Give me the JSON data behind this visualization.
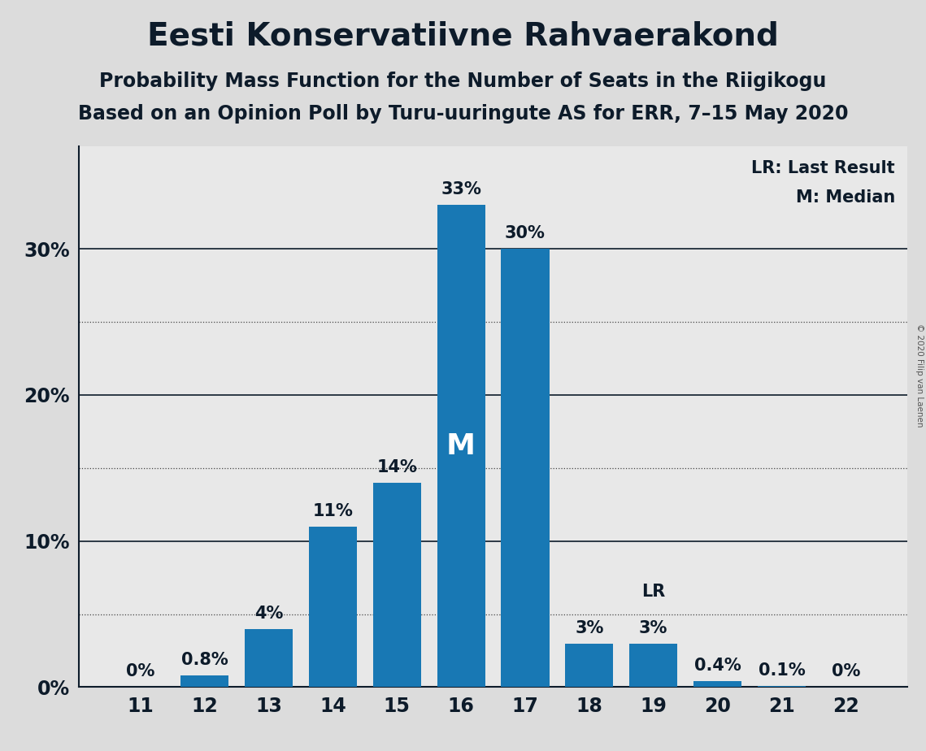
{
  "title": "Eesti Konservatiivne Rahvaerakond",
  "subtitle1": "Probability Mass Function for the Number of Seats in the Riigikogu",
  "subtitle2": "Based on an Opinion Poll by Turu-uuringute AS for ERR, 7–15 May 2020",
  "copyright": "© 2020 Filip van Laenen",
  "seats": [
    11,
    12,
    13,
    14,
    15,
    16,
    17,
    18,
    19,
    20,
    21,
    22
  ],
  "probabilities": [
    0.0,
    0.8,
    4.0,
    11.0,
    14.0,
    33.0,
    30.0,
    3.0,
    3.0,
    0.4,
    0.1,
    0.0
  ],
  "prob_labels": [
    "0%",
    "0.8%",
    "4%",
    "11%",
    "14%",
    "33%",
    "30%",
    "3%",
    "3%",
    "0.4%",
    "0.1%",
    "0%"
  ],
  "bar_color": "#1878b4",
  "median_seat": 16,
  "lr_seat": 19,
  "background_color": "#dcdcdc",
  "plot_background_color": "#e8e8e8",
  "ylim": [
    0,
    37
  ],
  "yticks": [
    0,
    10,
    20,
    30
  ],
  "ytick_labels": [
    "0%",
    "10%",
    "20%",
    "30%"
  ],
  "solid_lines": [
    10,
    20,
    30
  ],
  "dotted_lines": [
    5,
    15,
    25
  ],
  "title_fontsize": 28,
  "subtitle_fontsize": 17,
  "tick_fontsize": 17,
  "annotation_fontsize": 15,
  "legend_fontsize": 15,
  "m_fontsize": 26,
  "lr_label_fontsize": 15,
  "title_color": "#0d1b2a",
  "text_color": "#0d1b2a"
}
